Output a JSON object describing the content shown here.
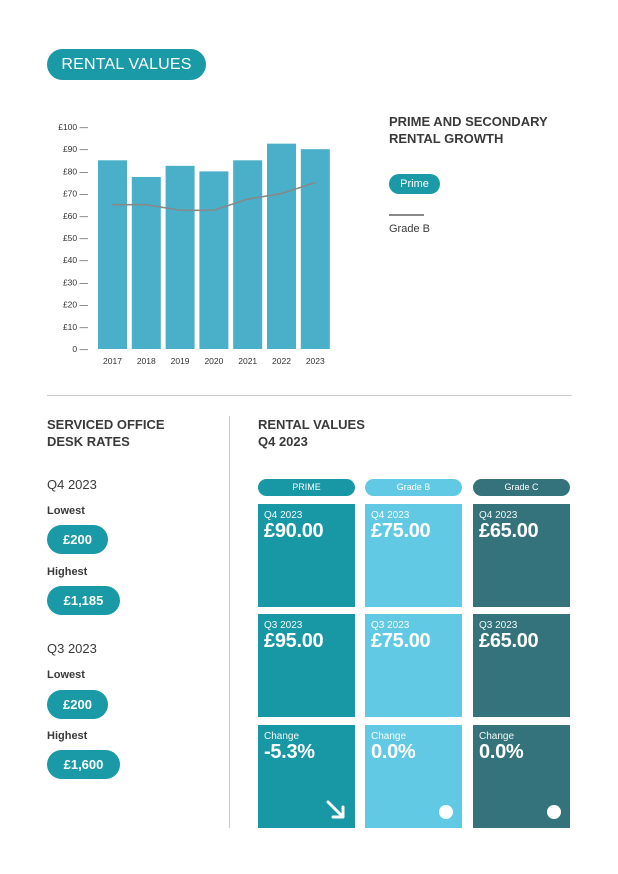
{
  "header": {
    "title": "RENTAL VALUES"
  },
  "legend": {
    "title_line1": "PRIME AND SECONDARY",
    "title_line2": "RENTAL GROWTH",
    "prime_label": "Prime",
    "gradeb_label": "Grade B"
  },
  "chart_data": {
    "type": "bar",
    "categories": [
      "2017",
      "2018",
      "2019",
      "2020",
      "2021",
      "2022",
      "2023"
    ],
    "series": [
      {
        "name": "Prime",
        "type": "bar",
        "color": "#4aafc8",
        "values": [
          85,
          77.5,
          82.5,
          80,
          85,
          92.5,
          90
        ]
      },
      {
        "name": "Grade B",
        "type": "line",
        "color": "#888888",
        "values": [
          65,
          65,
          62.5,
          62.5,
          67.5,
          70,
          75
        ]
      }
    ],
    "y_ticks": [
      "£100",
      "£90",
      "£80",
      "£70",
      "£60",
      "£50",
      "£40",
      "£30",
      "£20",
      "£10",
      "0"
    ],
    "ylim": [
      0,
      100
    ],
    "title": "",
    "xlabel": "",
    "ylabel": ""
  },
  "serviced": {
    "title_line1": "SERVICED OFFICE",
    "title_line2": "DESK RATES",
    "q4_label": "Q4 2023",
    "q4_lowest_label": "Lowest",
    "q4_lowest_value": "£200",
    "q4_highest_label": "Highest",
    "q4_highest_value": "£1,185",
    "q3_label": "Q3 2023",
    "q3_lowest_label": "Lowest",
    "q3_lowest_value": "£200",
    "q3_highest_label": "Highest",
    "q3_highest_value": "£1,600"
  },
  "rental_q4": {
    "title_line1": "RENTAL VALUES",
    "title_line2": "Q4 2023",
    "columns": [
      "PRIME",
      "Grade B",
      "Grade C"
    ],
    "prime": {
      "q4_label": "Q4 2023",
      "q4_value": "£90.00",
      "q3_label": "Q3 2023",
      "q3_value": "£95.00",
      "change_label": "Change",
      "change_value": "-5.3%"
    },
    "gradeb": {
      "q4_label": "Q4 2023",
      "q4_value": "£75.00",
      "q3_label": "Q3 2023",
      "q3_value": "£75.00",
      "change_label": "Change",
      "change_value": "0.0%"
    },
    "gradec": {
      "q4_label": "Q4 2023",
      "q4_value": "£65.00",
      "q3_label": "Q3 2023",
      "q3_value": "£65.00",
      "change_label": "Change",
      "change_value": "0.0%"
    }
  },
  "colors": {
    "teal": "#1a9aa6",
    "prime_cell": "#1897a5",
    "gradeb_cell": "#62c9e4",
    "gradec_cell": "#34737b"
  }
}
